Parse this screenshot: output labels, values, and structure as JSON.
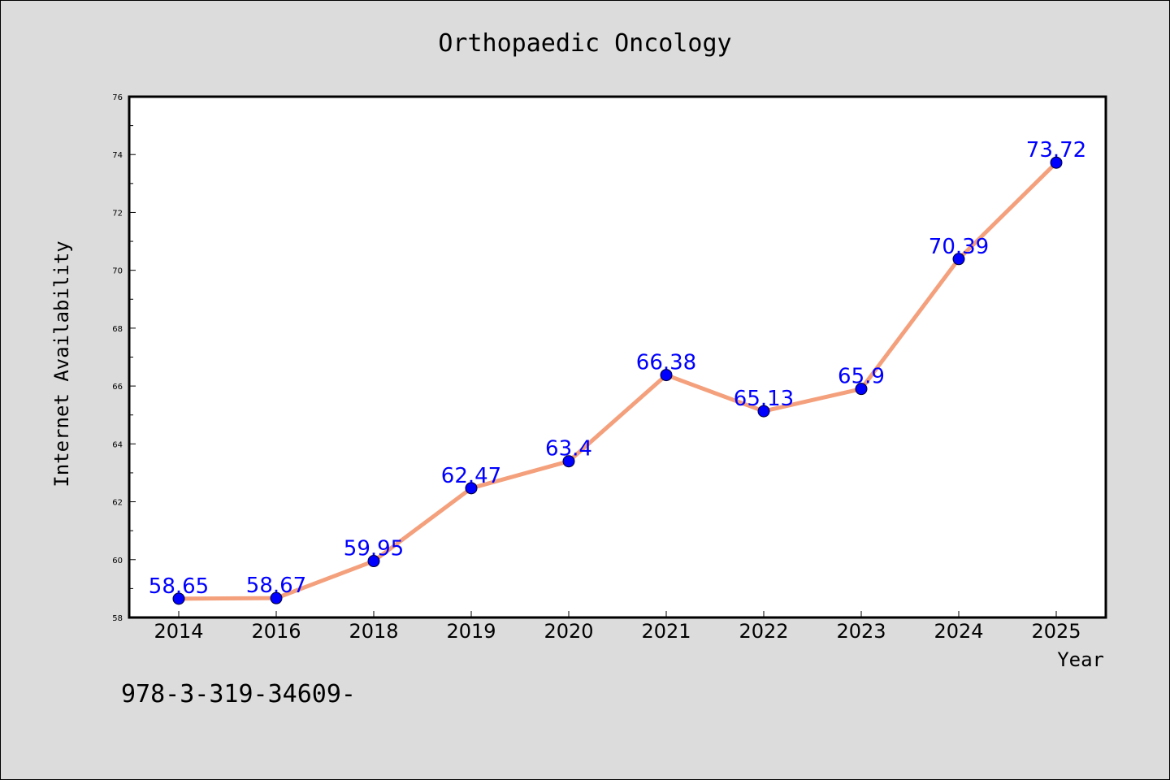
{
  "chart_data": {
    "type": "line",
    "title": "Orthopaedic Oncology",
    "xlabel": "Year",
    "ylabel": "Internet Availability",
    "categories": [
      "2014",
      "2016",
      "2018",
      "2019",
      "2020",
      "2021",
      "2022",
      "2023",
      "2024",
      "2025"
    ],
    "series": [
      {
        "values": [
          58.65,
          58.67,
          59.95,
          62.47,
          63.4,
          66.38,
          65.13,
          65.9,
          70.39,
          73.72
        ],
        "labels": [
          "58.65",
          "58.67",
          "59.95",
          "62.47",
          "63.4",
          "66.38",
          "65.13",
          "65.9",
          "70.39",
          "73.72"
        ]
      }
    ],
    "ylim": [
      58,
      76
    ],
    "yticks": [
      "58",
      "60",
      "62",
      "64",
      "66",
      "68",
      "70",
      "72",
      "74",
      "76"
    ],
    "grid": false,
    "colors": {
      "line": "#f4a07c",
      "marker": "#0000ff",
      "data_label": "#0000ff",
      "background": "#dcdcdc",
      "plot_background": "#ffffff"
    }
  },
  "footer_text": "978-3-319-34609-"
}
